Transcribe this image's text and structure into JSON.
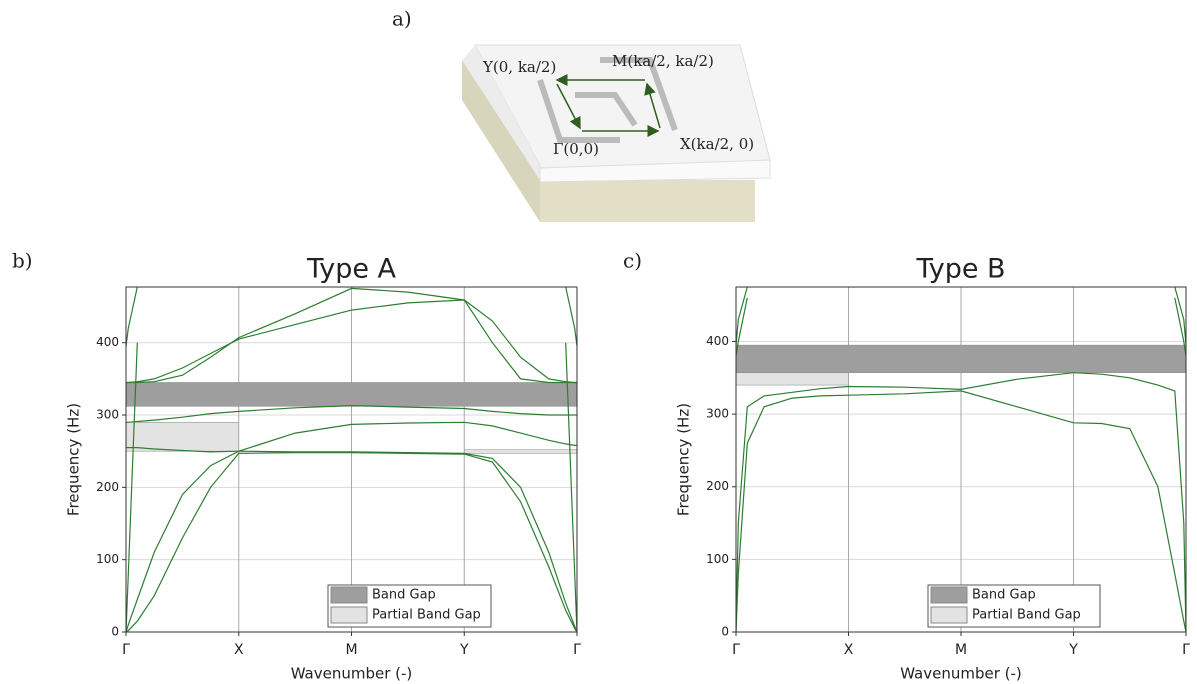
{
  "illustration": {
    "panel_label": "a)",
    "points": [
      "Y(0, ka/2)",
      "M(ka/2, ka/2)",
      "Γ(0,0)",
      "X(ka/2, 0)"
    ]
  },
  "chart_data": [
    {
      "type": "line",
      "panel_label": "b)",
      "title": "Type A",
      "xlabel": "Wavenumber (-)",
      "ylabel": "Frequency (Hz)",
      "xlim": [
        0,
        4
      ],
      "ylim": [
        0,
        477
      ],
      "xticks": [
        {
          "value": 0,
          "label": "Γ"
        },
        {
          "value": 1,
          "label": "X"
        },
        {
          "value": 2,
          "label": "M"
        },
        {
          "value": 3,
          "label": "Y"
        },
        {
          "value": 4,
          "label": "Γ"
        }
      ],
      "yticks": [
        0,
        100,
        200,
        300,
        400
      ],
      "grid": true,
      "legend": "lower right",
      "x": [
        0,
        0.02,
        0.1,
        0.25,
        0.5,
        0.75,
        1,
        1.5,
        2,
        2.5,
        3,
        3.25,
        3.5,
        3.75,
        3.9,
        3.98,
        4
      ],
      "gaps": [
        {
          "name": "Band Gap",
          "color": "#9e9e9e",
          "ranges": [
            {
              "x": [
                0,
                4
              ],
              "y": [
                312,
                345
              ]
            }
          ]
        },
        {
          "name": "Partial Band Gap",
          "color": "#e3e3e3",
          "ranges": [
            {
              "x": [
                0,
                1
              ],
              "y": [
                250,
                290
              ]
            },
            {
              "x": [
                3,
                4
              ],
              "y": [
                247,
                252
              ]
            }
          ]
        }
      ],
      "series": [
        {
          "color": "#2e7d32",
          "values": [
            0,
            2,
            15,
            50,
            130,
            200,
            247,
            248,
            248,
            247,
            246,
            235,
            180,
            90,
            30,
            5,
            0
          ]
        },
        {
          "color": "#2e7d32",
          "values": [
            0,
            10,
            45,
            110,
            190,
            230,
            250,
            249,
            249,
            248,
            247,
            240,
            200,
            110,
            40,
            8,
            0
          ]
        },
        {
          "color": "#2e7d32",
          "values": [
            290,
            290,
            291,
            293,
            297,
            302,
            305,
            310,
            313,
            311,
            309,
            305,
            302,
            300,
            300,
            300,
            300
          ]
        },
        {
          "color": "#2e7d32",
          "values": [
            255,
            255,
            255,
            253,
            251,
            249,
            250,
            275,
            287,
            289,
            290,
            285,
            275,
            265,
            260,
            258,
            258
          ]
        },
        {
          "color": "#2e7d32",
          "values": [
            345,
            345,
            346,
            350,
            365,
            385,
            405,
            425,
            445,
            455,
            459,
            400,
            350,
            345,
            345,
            345,
            345
          ]
        },
        {
          "color": "#2e7d32",
          "values": [
            345,
            345,
            345,
            346,
            355,
            380,
            407,
            440,
            475,
            470,
            459,
            430,
            380,
            350,
            346,
            345,
            345
          ]
        },
        {
          "color": "#2e7d32",
          "values": [
            0,
            80,
            400,
            null,
            null,
            null,
            null,
            null,
            null,
            null,
            null,
            null,
            null,
            null,
            400,
            80,
            0
          ]
        },
        {
          "color": "#2e7d32",
          "values": [
            395,
            420,
            477,
            null,
            null,
            null,
            null,
            null,
            null,
            null,
            null,
            null,
            null,
            null,
            477,
            420,
            395
          ]
        }
      ]
    },
    {
      "type": "line",
      "panel_label": "c)",
      "title": "Type B",
      "xlabel": "Wavenumber (-)",
      "ylabel": "Frequency (Hz)",
      "xlim": [
        0,
        4
      ],
      "ylim": [
        0,
        475
      ],
      "xticks": [
        {
          "value": 0,
          "label": "Γ"
        },
        {
          "value": 1,
          "label": "X"
        },
        {
          "value": 2,
          "label": "M"
        },
        {
          "value": 3,
          "label": "Y"
        },
        {
          "value": 4,
          "label": "Γ"
        }
      ],
      "yticks": [
        0,
        100,
        200,
        300,
        400
      ],
      "grid": true,
      "legend": "lower right",
      "x": [
        0,
        0.02,
        0.1,
        0.25,
        0.5,
        0.75,
        1,
        1.5,
        2,
        2.5,
        3,
        3.25,
        3.5,
        3.75,
        3.9,
        3.98,
        4
      ],
      "gaps": [
        {
          "name": "Band Gap",
          "color": "#9e9e9e",
          "ranges": [
            {
              "x": [
                0,
                4
              ],
              "y": [
                357,
                395
              ]
            }
          ]
        },
        {
          "name": "Partial Band Gap",
          "color": "#e3e3e3",
          "ranges": [
            {
              "x": [
                0,
                1
              ],
              "y": [
                340,
                357
              ]
            }
          ]
        }
      ],
      "series": [
        {
          "color": "#2e7d32",
          "values": [
            0,
            80,
            260,
            310,
            322,
            325,
            326,
            328,
            332,
            310,
            288,
            287,
            280,
            200,
            80,
            15,
            0
          ]
        },
        {
          "color": "#2e7d32",
          "values": [
            0,
            150,
            310,
            325,
            330,
            335,
            338,
            337,
            334,
            348,
            357,
            355,
            350,
            340,
            332,
            150,
            0
          ]
        },
        {
          "color": "#2e7d32",
          "values": [
            380,
            400,
            460,
            null,
            null,
            null,
            null,
            null,
            null,
            null,
            null,
            null,
            null,
            null,
            460,
            400,
            380
          ]
        },
        {
          "color": "#2e7d32",
          "values": [
            395,
            430,
            475,
            null,
            null,
            null,
            null,
            null,
            null,
            null,
            null,
            null,
            null,
            null,
            475,
            430,
            395
          ]
        }
      ]
    }
  ]
}
